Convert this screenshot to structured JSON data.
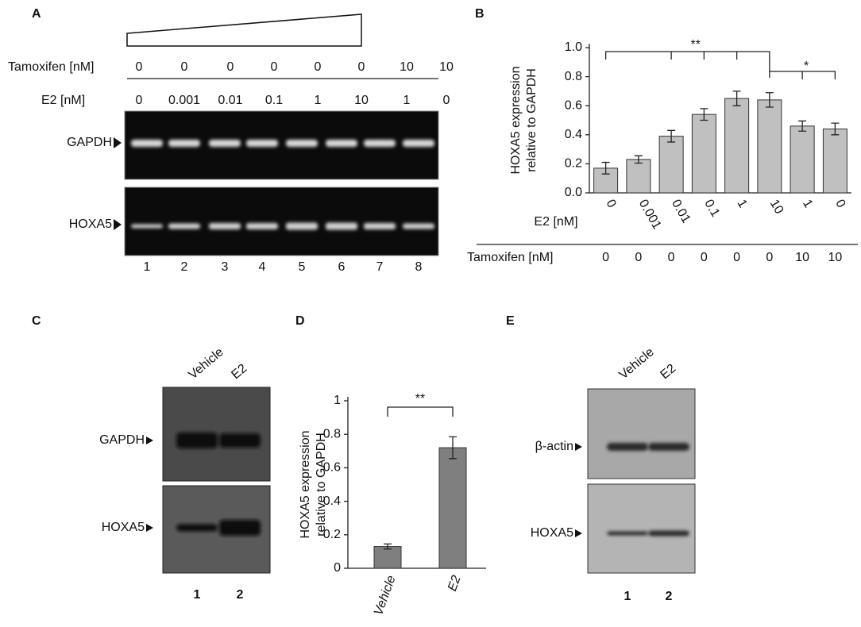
{
  "panel_labels": [
    "A",
    "B",
    "C",
    "D",
    "E"
  ],
  "panel_a": {
    "tamoxifen_label": "Tamoxifen [nM]",
    "tamoxifen": [
      0,
      0,
      0,
      0,
      0,
      0,
      10,
      10
    ],
    "e2_label": "E2 [nM]",
    "e2": [
      "0",
      "0.001",
      "0.01",
      "0.1",
      "1",
      "10",
      "1",
      "0"
    ],
    "bands": [
      "GAPDH",
      "HOXA5"
    ],
    "lanes": [
      1,
      2,
      3,
      4,
      5,
      6,
      7,
      8
    ]
  },
  "chart_data": [
    {
      "type": "bar",
      "y_label": [
        "HOXA5 expression",
        "relative to GAPDH"
      ],
      "categories_label": "E2 [nM]",
      "categories": [
        "0",
        "0.001",
        "0.01",
        "0.1",
        "1",
        "10",
        "1",
        "0"
      ],
      "secondary_label": "Tamoxifen [nM]",
      "secondary_categories": [
        0,
        0,
        0,
        0,
        0,
        0,
        10,
        10
      ],
      "values": [
        0.17,
        0.23,
        0.39,
        0.54,
        0.65,
        0.64,
        0.46,
        0.44
      ],
      "errors": [
        0.04,
        0.025,
        0.04,
        0.04,
        0.05,
        0.05,
        0.035,
        0.04
      ],
      "color": "#c0c0c0",
      "ylim": [
        0,
        1
      ],
      "yticks": [
        {
          "value": 0,
          "label": "0.0"
        },
        0.2,
        0.4,
        0.6,
        0.8,
        {
          "value": 1,
          "label": "1.0"
        }
      ],
      "annotations": [
        "**",
        "*"
      ]
    },
    {
      "type": "bar",
      "y_label": [
        "HOXA5 expression",
        "relative to GAPDH"
      ],
      "categories": [
        "Vehicle",
        "E2"
      ],
      "values": [
        0.13,
        0.72
      ],
      "errors": [
        0.015,
        0.065
      ],
      "color": "#7f7f7f",
      "ylim": [
        0,
        1
      ],
      "yticks": [
        0,
        0.2,
        0.4,
        0.6,
        0.8,
        1
      ],
      "annotations": [
        "**"
      ]
    }
  ],
  "panel_c": {
    "lanes": [
      "Vehicle",
      "E2"
    ],
    "bands": [
      "GAPDH",
      "HOXA5"
    ],
    "lane_numbers": [
      1,
      2
    ]
  },
  "panel_e": {
    "lanes": [
      "Vehicle",
      "E2"
    ],
    "bands": [
      "β-actin",
      "HOXA5"
    ],
    "lane_numbers": [
      1,
      2
    ]
  }
}
